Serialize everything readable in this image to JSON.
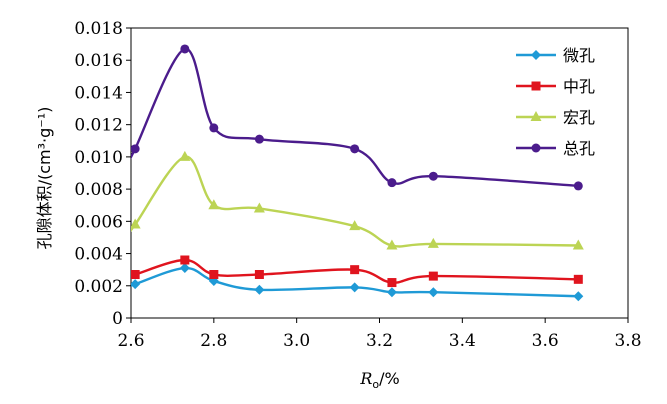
{
  "chart_data": {
    "type": "line",
    "xlabel": "R",
    "xlabel_sub": "o",
    "xlabel_unit": "/%",
    "ylabel": "孔隙体积/(cm³·g⁻¹)",
    "xlim": [
      2.6,
      3.8
    ],
    "ylim": [
      0,
      0.018
    ],
    "xticks": [
      "2.6",
      "2.8",
      "3.0",
      "3.2",
      "3.4",
      "3.6",
      "3.8"
    ],
    "yticks": [
      "0",
      "0.002",
      "0.004",
      "0.006",
      "0.008",
      "0.010",
      "0.012",
      "0.014",
      "0.016",
      "0.018"
    ],
    "grid": false,
    "legend_position": "top-right",
    "series": [
      {
        "name": "微孔",
        "color": "#1f9ad6",
        "marker": "diamond",
        "points": [
          [
            2.61,
            0.0021
          ],
          [
            2.73,
            0.0031
          ],
          [
            2.8,
            0.0023
          ],
          [
            2.91,
            0.00175
          ],
          [
            3.14,
            0.0019
          ],
          [
            3.23,
            0.0016
          ],
          [
            3.33,
            0.0016
          ],
          [
            3.68,
            0.00135
          ]
        ]
      },
      {
        "name": "中孔",
        "color": "#e0141e",
        "marker": "square",
        "points": [
          [
            2.61,
            0.0027
          ],
          [
            2.73,
            0.0036
          ],
          [
            2.8,
            0.0027
          ],
          [
            2.91,
            0.0027
          ],
          [
            3.14,
            0.003
          ],
          [
            3.23,
            0.0022
          ],
          [
            3.33,
            0.0026
          ],
          [
            3.68,
            0.0024
          ]
        ]
      },
      {
        "name": "宏孔",
        "color": "#bcd454",
        "marker": "triangle",
        "points": [
          [
            2.61,
            0.0058
          ],
          [
            2.73,
            0.01
          ],
          [
            2.8,
            0.007
          ],
          [
            2.91,
            0.0068
          ],
          [
            3.14,
            0.0057
          ],
          [
            3.23,
            0.0045
          ],
          [
            3.33,
            0.0046
          ],
          [
            3.68,
            0.0045
          ]
        ]
      },
      {
        "name": "总孔",
        "color": "#4b1c8c",
        "marker": "circle",
        "points": [
          [
            2.61,
            0.0105
          ],
          [
            2.73,
            0.0167
          ],
          [
            2.8,
            0.0118
          ],
          [
            2.91,
            0.0111
          ],
          [
            3.14,
            0.0105
          ],
          [
            3.23,
            0.0084
          ],
          [
            3.33,
            0.0088
          ],
          [
            3.68,
            0.0082
          ]
        ]
      }
    ]
  }
}
